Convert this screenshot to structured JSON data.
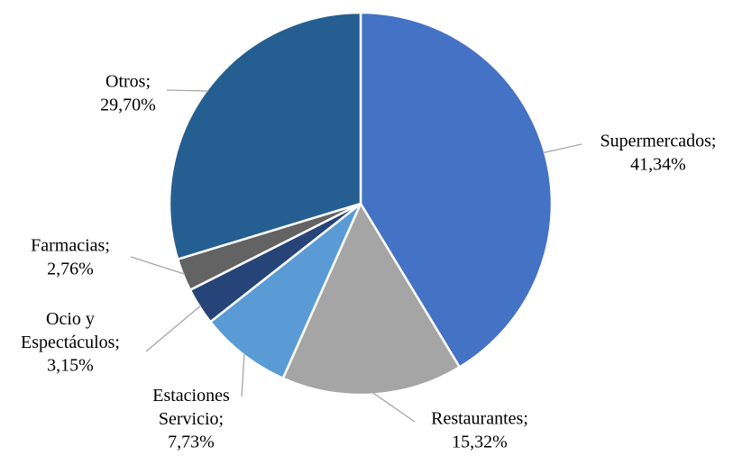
{
  "chart_data": {
    "type": "pie",
    "categories": [
      "Supermercados;",
      "Restaurantes;",
      "Estaciones Servicio;",
      "Ocio y Espectáculos;",
      "Farmacias;",
      "Otros;"
    ],
    "values": [
      41.34,
      15.32,
      7.73,
      3.15,
      2.76,
      29.7
    ],
    "value_labels": [
      "41,34%",
      "15,32%",
      "7,73%",
      "3,15%",
      "2,76%",
      "29,70%"
    ],
    "colors": [
      "#4472c4",
      "#a5a5a5",
      "#5b9bd5",
      "#264478",
      "#636363",
      "#255e91"
    ]
  }
}
